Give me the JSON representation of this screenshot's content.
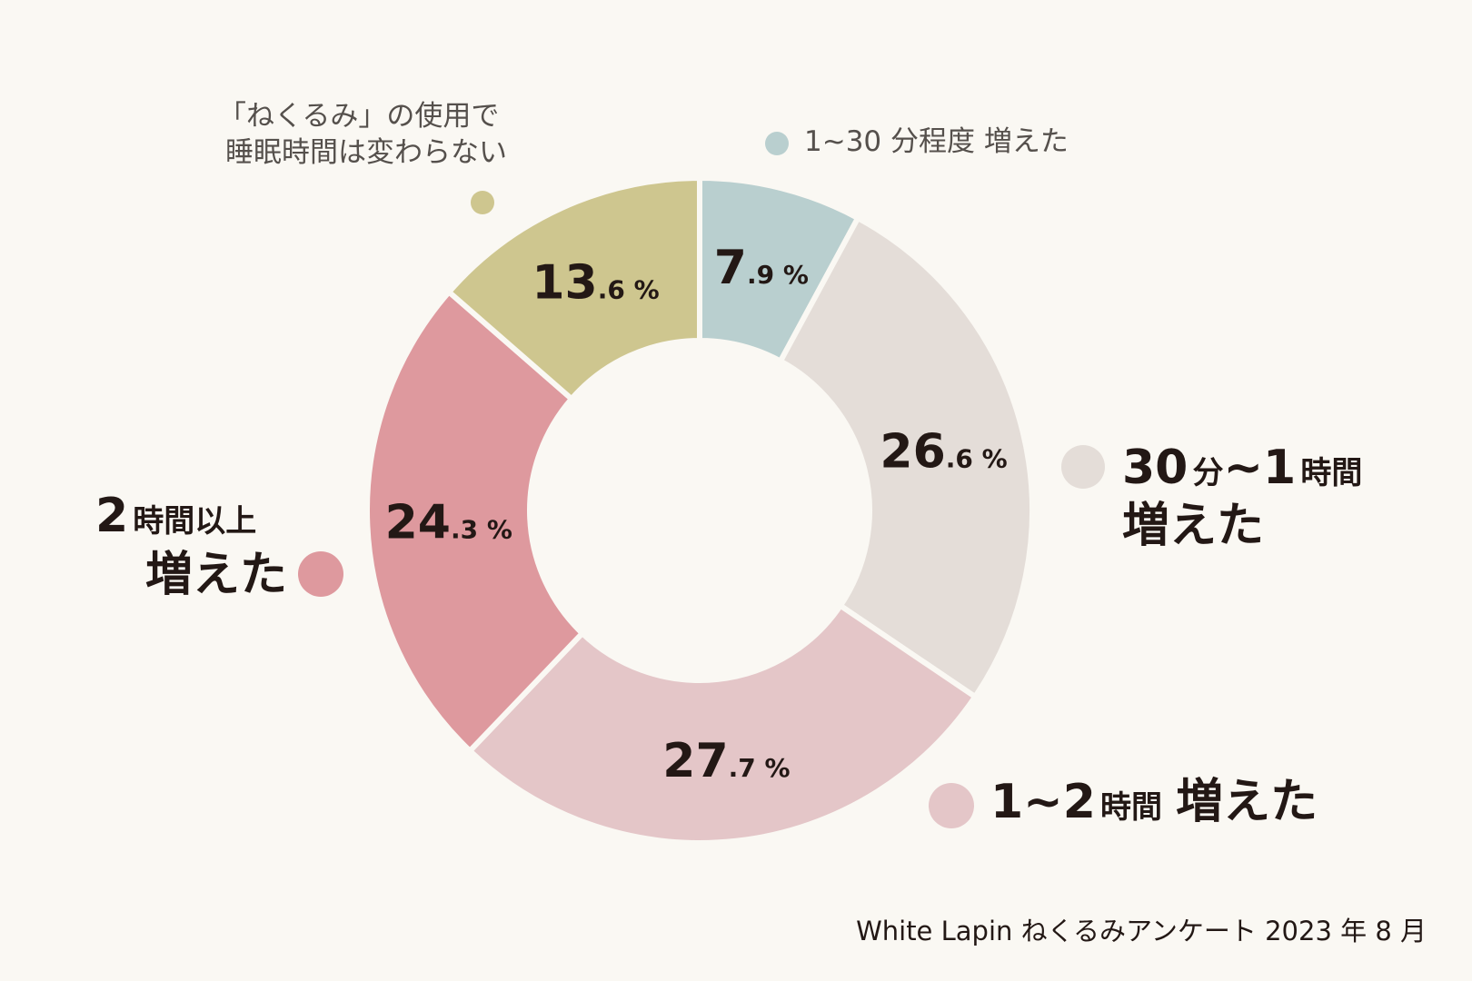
{
  "chart_data": {
    "type": "pie",
    "donut": true,
    "categories": [
      "1~30 分程度 増えた",
      "30 分~1 時間 増えた",
      "1~2 時間 増えた",
      "2 時間以上 増えた",
      "「ねくるみ」の使用で 睡眠時間は変わらない"
    ],
    "values": [
      7.9,
      26.6,
      27.7,
      24.3,
      13.6
    ],
    "colors": [
      "#b9cfcf",
      "#e4ddd8",
      "#e4c6c8",
      "#de999e",
      "#cec68f"
    ],
    "slice_labels": [
      {
        "int": "7",
        "dec": ".9 %"
      },
      {
        "int": "26",
        "dec": ".6 %"
      },
      {
        "int": "27",
        "dec": ".7 %"
      },
      {
        "int": "24",
        "dec": ".3 %"
      },
      {
        "int": "13",
        "dec": ".6 %"
      }
    ]
  },
  "legend": {
    "s0": "1~30 分程度 増えた",
    "s1_num1": "30",
    "s1_unit1": "分",
    "s1_num2": "~1",
    "s1_unit2": "時間",
    "s1_line2": "増えた",
    "s2_num": "1~2",
    "s2_unit": "時間",
    "s2_tail": "増えた",
    "s3_num": "2",
    "s3_unit": "時間以上",
    "s3_line2": "増えた",
    "s4_line1": "「ねくるみ」の使用で",
    "s4_line2": "睡眠時間は変わらない"
  },
  "source": "White Lapin ねくるみアンケート 2023 年 8 月"
}
